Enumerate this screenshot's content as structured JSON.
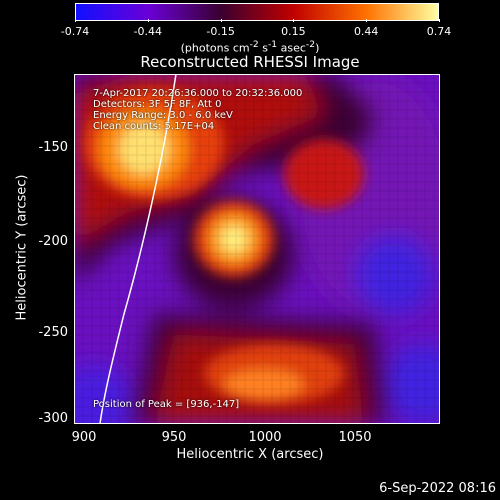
{
  "window": {
    "title": "Reconstructed RHESSI Image",
    "footer_date": "6-Sep-2022 08:16"
  },
  "colorbar": {
    "ticks": [
      "-0.74",
      "-0.44",
      "-0.15",
      "0.15",
      "0.44",
      "0.74"
    ],
    "units_html": "(photons cm<sup>-2</sup> s<sup>-1</sup> asec<sup>-2</sup>)",
    "range": [
      -0.74,
      0.74
    ],
    "colors": [
      "#1010ff",
      "#6a00d8",
      "#3a0030",
      "#c00000",
      "#ff7000",
      "#ffffa0"
    ]
  },
  "info": {
    "line1": "7-Apr-2017 20:26:36.000 to 20:32:36.000",
    "line2": "Detectors: 3F 5F 8F, Att 0",
    "line3": "Energy Range: 3.0 - 6.0 keV",
    "line4": "Clean      counts: 5.17E+04",
    "peak": "Position of Peak = [936,-147]"
  },
  "axes": {
    "xlabel": "Heliocentric X (arcsec)",
    "ylabel": "Heliocentric Y (arcsec)",
    "xticks": [
      "900",
      "950",
      "1000",
      "1050"
    ],
    "yticks": [
      "-150",
      "-200",
      "-250",
      "-300"
    ],
    "xlim": [
      896,
      1090
    ],
    "ylim": [
      -302,
      -110
    ]
  },
  "image_data": {
    "peak_x": 936,
    "peak_y": -147,
    "secondary_peak_x": 985,
    "secondary_peak_y": -198
  }
}
